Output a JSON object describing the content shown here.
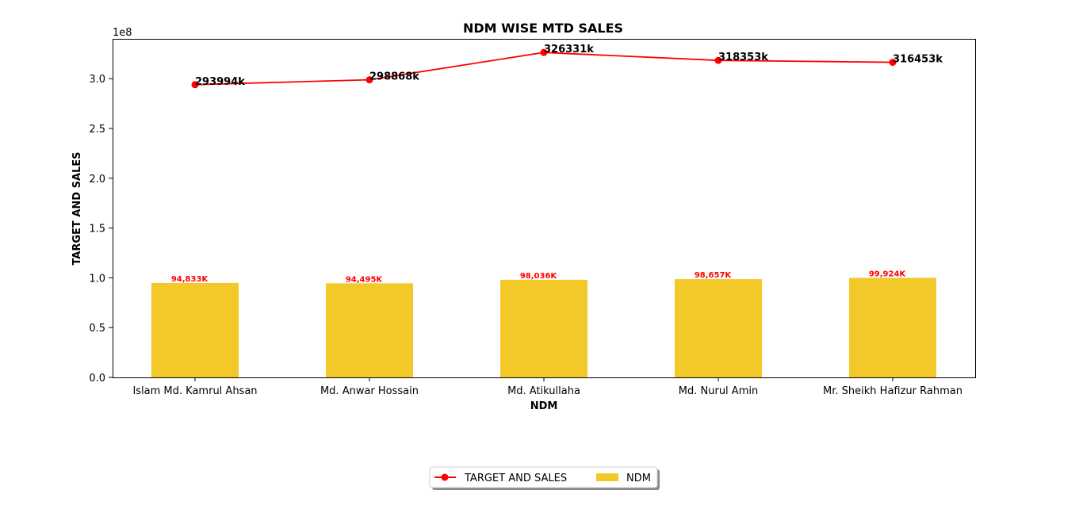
{
  "chart_data": {
    "type": "bar",
    "title": "NDM WISE MTD SALES",
    "xlabel": "NDM",
    "ylabel": "TARGET AND SALES",
    "y_offset_label": "1e8",
    "ylim": [
      0,
      340000000
    ],
    "yticks": [
      0,
      50000000,
      100000000,
      150000000,
      200000000,
      250000000,
      300000000
    ],
    "ytick_labels": [
      "0.0",
      "0.5",
      "1.0",
      "1.5",
      "2.0",
      "2.5",
      "3.0"
    ],
    "categories": [
      "Islam Md. Kamrul Ahsan",
      "Md. Anwar Hossain",
      "Md. Atikullaha",
      "Md. Nurul Amin",
      "Mr. Sheikh Hafizur Rahman"
    ],
    "series": [
      {
        "name": "NDM",
        "type": "bar",
        "color": "#f2c928",
        "values": [
          94833000,
          94495000,
          98036000,
          98657000,
          99924000
        ],
        "labels": [
          "94,833K",
          "94,495K",
          "98,036K",
          "98,657K",
          "99,924K"
        ],
        "label_color": "#ff0000"
      },
      {
        "name": "TARGET AND SALES",
        "type": "line",
        "color": "#ff0000",
        "values": [
          293994000,
          298868000,
          326331000,
          318353000,
          316453000
        ],
        "labels": [
          "293994k",
          "298868k",
          "326331k",
          "318353k",
          "316453k"
        ]
      }
    ],
    "grid": false,
    "legend": "bottom-center"
  }
}
